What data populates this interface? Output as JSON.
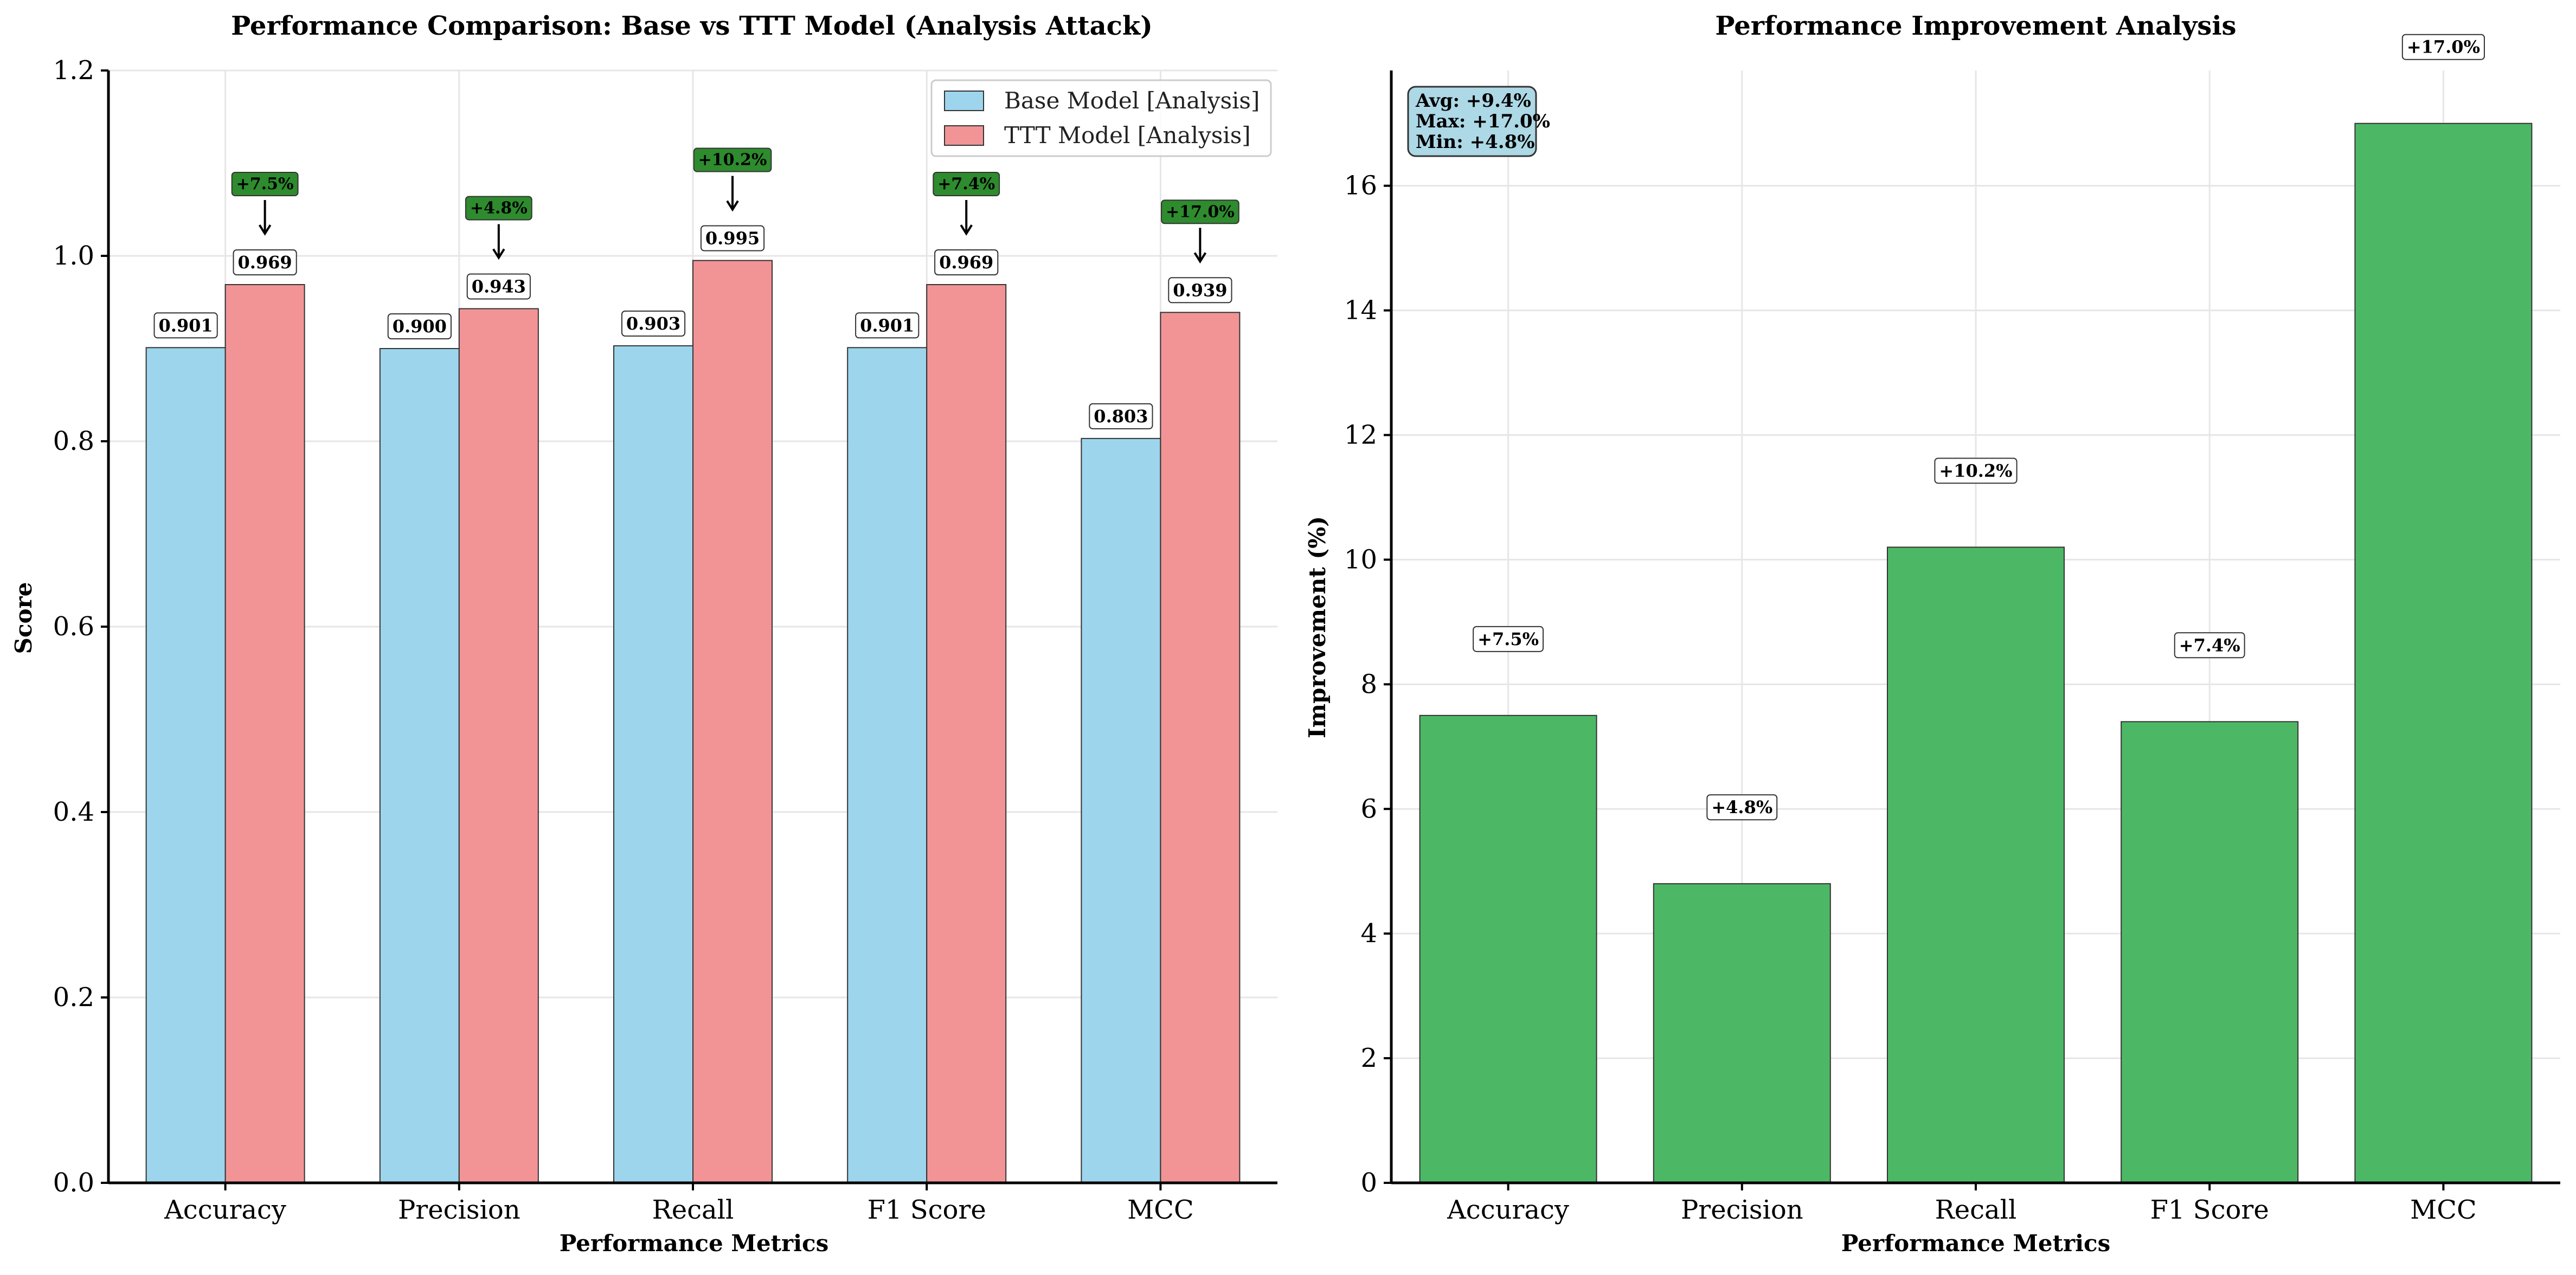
{
  "chart_data": [
    {
      "type": "bar",
      "title": "Performance Comparison: Base vs TTT Model (Analysis Attack)",
      "xlabel": "Performance Metrics",
      "ylabel": "Score",
      "categories": [
        "Accuracy",
        "Precision",
        "Recall",
        "F1 Score",
        "MCC"
      ],
      "series": [
        {
          "name": "Base Model [Analysis]",
          "values": [
            0.901,
            0.9,
            0.903,
            0.901,
            0.803
          ],
          "color": "#9dd5ed"
        },
        {
          "name": "TTT Model [Analysis]",
          "values": [
            0.969,
            0.943,
            0.995,
            0.969,
            0.939
          ],
          "color": "#f29496"
        }
      ],
      "value_labels": {
        "base": [
          "0.901",
          "0.900",
          "0.903",
          "0.901",
          "0.803"
        ],
        "ttt": [
          "0.969",
          "0.943",
          "0.995",
          "0.969",
          "0.939"
        ]
      },
      "improvement_annotations": [
        "+7.5%",
        "+4.8%",
        "+10.2%",
        "+7.4%",
        "+17.0%"
      ],
      "yticks": [
        "0.0",
        "0.2",
        "0.4",
        "0.6",
        "0.8",
        "1.0",
        "1.2"
      ],
      "ylim": [
        0,
        1.2
      ],
      "grid": true,
      "legend_position": "top-right"
    },
    {
      "type": "bar",
      "title": "Performance Improvement Analysis",
      "xlabel": "Performance Metrics",
      "ylabel": "Improvement (%)",
      "categories": [
        "Accuracy",
        "Precision",
        "Recall",
        "F1 Score",
        "MCC"
      ],
      "values": [
        7.5,
        4.8,
        10.2,
        7.4,
        17.0
      ],
      "value_labels": [
        "+7.5%",
        "+4.8%",
        "+10.2%",
        "+7.4%",
        "+17.0%"
      ],
      "color": "#4cb866",
      "yticks": [
        "0",
        "2",
        "4",
        "6",
        "8",
        "10",
        "12",
        "14",
        "16"
      ],
      "ylim": [
        0,
        17.85
      ],
      "grid": true,
      "stats_box": [
        "Avg: +9.4%",
        "Max: +17.0%",
        "Min: +4.8%"
      ],
      "stats_box_position": "top-left"
    }
  ]
}
